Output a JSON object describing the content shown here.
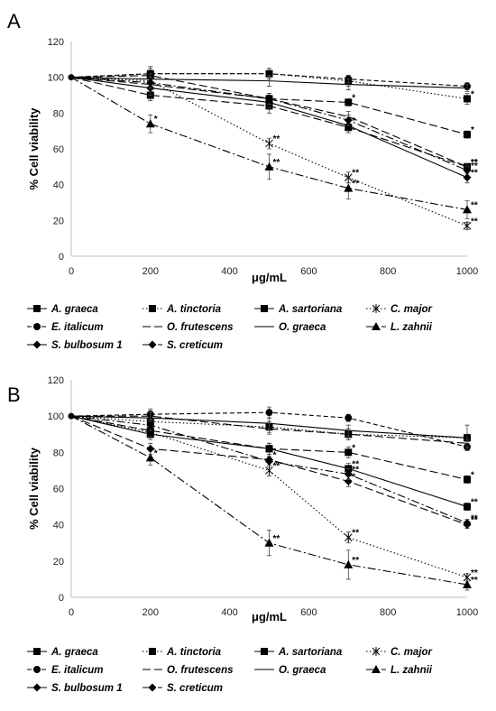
{
  "chart_data": [
    {
      "panel_label": "A",
      "type": "line",
      "xlabel": "μg/mL",
      "ylabel": "% Cell viability",
      "xlim": [
        0,
        1000
      ],
      "ylim": [
        0,
        120
      ],
      "xticks": [
        0,
        200,
        400,
        600,
        800,
        1000
      ],
      "yticks": [
        0,
        20,
        40,
        60,
        80,
        100,
        120
      ],
      "grid": false,
      "legend_position": "bottom",
      "x": [
        0,
        200,
        500,
        700,
        1000
      ],
      "series": [
        {
          "name": "A. graeca",
          "values": [
            100,
            90,
            84,
            72,
            50
          ],
          "errors": [
            0,
            3,
            4,
            3,
            2
          ],
          "marker": "square",
          "dash": "long-dash",
          "sig": [
            "",
            "",
            "",
            "",
            "**"
          ]
        },
        {
          "name": "A. tinctoria",
          "values": [
            100,
            102,
            102,
            98,
            88
          ],
          "errors": [
            0,
            4,
            3,
            3,
            3
          ],
          "marker": "square",
          "dash": "dot",
          "sig": [
            "",
            "",
            "",
            "",
            "*"
          ]
        },
        {
          "name": "A. sartoriana",
          "values": [
            100,
            101,
            88,
            86,
            68
          ],
          "errors": [
            0,
            3,
            2,
            2,
            2
          ],
          "marker": "square",
          "dash": "long-dash",
          "sig": [
            "",
            "",
            "",
            "*",
            "*"
          ]
        },
        {
          "name": "C. major",
          "values": [
            100,
            98,
            63,
            44,
            17
          ],
          "errors": [
            0,
            4,
            3,
            3,
            2
          ],
          "marker": "asterisk",
          "dash": "dot",
          "sig": [
            "",
            "",
            "**",
            "**",
            "**"
          ]
        },
        {
          "name": "E. italicum",
          "values": [
            100,
            102,
            102,
            99,
            95
          ],
          "errors": [
            0,
            3,
            3,
            2,
            2
          ],
          "marker": "circle",
          "dash": "dash",
          "sig": [
            "",
            "",
            "",
            "",
            ""
          ]
        },
        {
          "name": "O. frutescens",
          "values": [
            100,
            96,
            88,
            78,
            50
          ],
          "errors": [
            0,
            3,
            3,
            3,
            2
          ],
          "marker": "none",
          "dash": "long-dash",
          "sig": [
            "",
            "",
            "",
            "",
            "**"
          ]
        },
        {
          "name": "O. graeca",
          "values": [
            100,
            99,
            98,
            96,
            94
          ],
          "errors": [
            0,
            3,
            3,
            3,
            2
          ],
          "marker": "none",
          "dash": "solid",
          "sig": [
            "",
            "",
            "",
            "",
            ""
          ]
        },
        {
          "name": "L. zahnii",
          "values": [
            100,
            74,
            50,
            38,
            26
          ],
          "errors": [
            0,
            5,
            7,
            6,
            5
          ],
          "marker": "triangle",
          "dash": "dash-dot",
          "sig": [
            "",
            "*",
            "**",
            "**",
            "**"
          ]
        },
        {
          "name": "S. bulbosum 1",
          "values": [
            100,
            94,
            86,
            73,
            44
          ],
          "errors": [
            0,
            4,
            3,
            4,
            3
          ],
          "marker": "diamond",
          "dash": "solid",
          "sig": [
            "",
            "",
            "",
            "*",
            "**"
          ]
        },
        {
          "name": "S. creticum",
          "values": [
            100,
            97,
            88,
            76,
            48
          ],
          "errors": [
            0,
            3,
            3,
            3,
            2
          ],
          "marker": "diamond",
          "dash": "dash-dot",
          "sig": [
            "",
            "",
            "",
            "",
            "**"
          ]
        }
      ]
    },
    {
      "panel_label": "B",
      "type": "line",
      "xlabel": "μg/mL",
      "ylabel": "% Cell viability",
      "xlim": [
        0,
        1000
      ],
      "ylim": [
        0,
        120
      ],
      "xticks": [
        0,
        200,
        400,
        600,
        800,
        1000
      ],
      "yticks": [
        0,
        20,
        40,
        60,
        80,
        100,
        120
      ],
      "grid": false,
      "legend_position": "bottom",
      "x": [
        0,
        200,
        500,
        700,
        1000
      ],
      "series": [
        {
          "name": "A. graeca",
          "values": [
            100,
            90,
            82,
            71,
            50
          ],
          "errors": [
            0,
            3,
            3,
            3,
            2
          ],
          "marker": "square",
          "dash": "solid",
          "sig": [
            "",
            "",
            "",
            "**",
            "**"
          ]
        },
        {
          "name": "A. tinctoria",
          "values": [
            100,
            97,
            94,
            90,
            88
          ],
          "errors": [
            0,
            3,
            3,
            3,
            2
          ],
          "marker": "square",
          "dash": "dot",
          "sig": [
            "",
            "",
            "",
            "",
            ""
          ]
        },
        {
          "name": "A. sartoriana",
          "values": [
            100,
            92,
            82,
            80,
            65
          ],
          "errors": [
            0,
            3,
            3,
            3,
            2
          ],
          "marker": "square",
          "dash": "long-dash",
          "sig": [
            "",
            "",
            "",
            "*",
            "*"
          ]
        },
        {
          "name": "C. major",
          "values": [
            100,
            91,
            70,
            33,
            11
          ],
          "errors": [
            0,
            3,
            3,
            3,
            2
          ],
          "marker": "asterisk",
          "dash": "dot",
          "sig": [
            "",
            "",
            "**",
            "**",
            "**"
          ]
        },
        {
          "name": "E. italicum",
          "values": [
            100,
            101,
            102,
            99,
            83
          ],
          "errors": [
            0,
            3,
            3,
            2,
            2
          ],
          "marker": "circle",
          "dash": "dash",
          "sig": [
            "",
            "",
            "",
            "",
            ""
          ]
        },
        {
          "name": "O. frutescens",
          "values": [
            100,
            100,
            93,
            90,
            85
          ],
          "errors": [
            0,
            3,
            3,
            3,
            2
          ],
          "marker": "none",
          "dash": "long-dash",
          "sig": [
            "",
            "",
            "",
            "",
            ""
          ]
        },
        {
          "name": "O. graeca",
          "values": [
            100,
            99,
            96,
            92,
            88
          ],
          "errors": [
            0,
            3,
            3,
            3,
            7
          ],
          "marker": "none",
          "dash": "solid",
          "sig": [
            "",
            "",
            "",
            "",
            ""
          ]
        },
        {
          "name": "L. zahnii",
          "values": [
            100,
            77,
            30,
            18,
            7
          ],
          "errors": [
            0,
            4,
            7,
            8,
            3
          ],
          "marker": "triangle",
          "dash": "dash-dot",
          "sig": [
            "",
            "*",
            "**",
            "**",
            "**"
          ]
        },
        {
          "name": "S. bulbosum 1",
          "values": [
            100,
            82,
            76,
            64,
            40
          ],
          "errors": [
            0,
            3,
            3,
            3,
            2
          ],
          "marker": "diamond",
          "dash": "long-dash",
          "sig": [
            "",
            "",
            "*",
            "*",
            "**"
          ]
        },
        {
          "name": "S. creticum",
          "values": [
            100,
            95,
            75,
            68,
            41
          ],
          "errors": [
            0,
            3,
            3,
            3,
            2
          ],
          "marker": "diamond",
          "dash": "dash-dot",
          "sig": [
            "",
            "",
            "",
            "**",
            "**"
          ]
        }
      ]
    }
  ]
}
